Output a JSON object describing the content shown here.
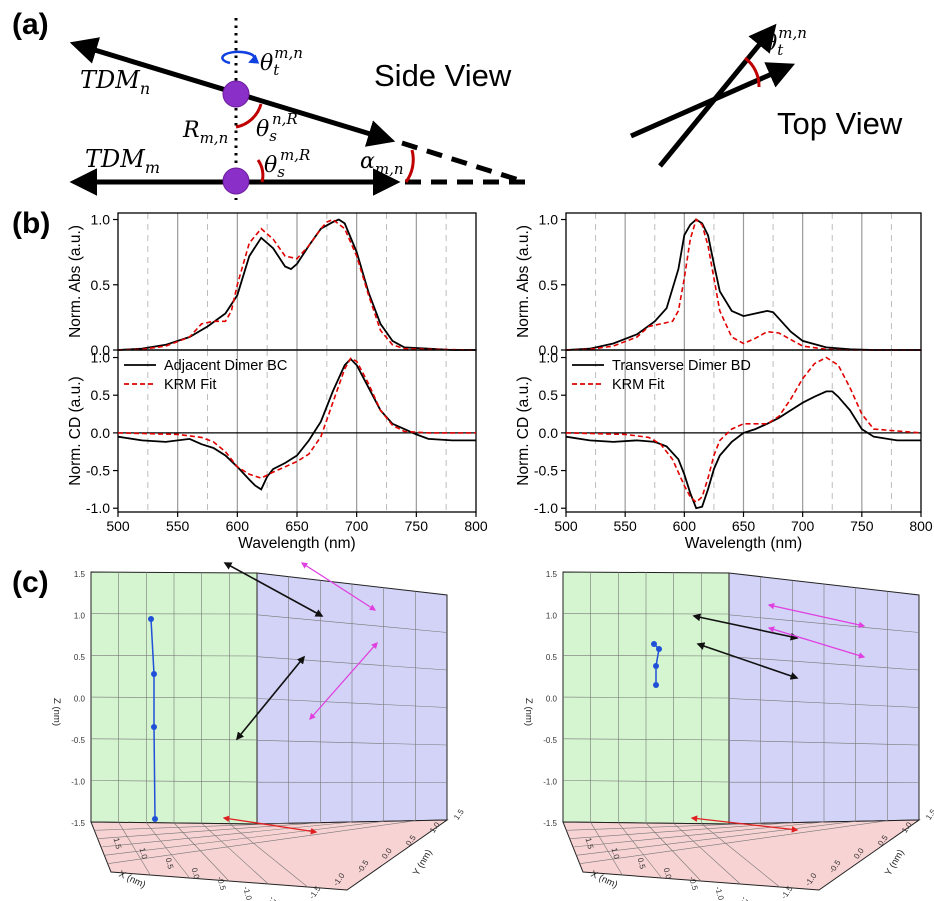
{
  "panels": {
    "a": "(a)",
    "b": "(b)",
    "c": "(c)"
  },
  "diagram": {
    "side_view": "Side View",
    "top_view": "Top View",
    "tdm_n": "TDM",
    "tdm_n_sub": "n",
    "tdm_m": "TDM",
    "tdm_m_sub": "m",
    "r": "R",
    "r_sub": "m,n",
    "theta": "θ",
    "theta_t_sub": "t",
    "theta_t_sup": "m,n",
    "theta_s_sub": "s",
    "theta_s1_sup": "n,R",
    "theta_s2_sup": "m,R",
    "alpha": "α",
    "alpha_sub": "m,n"
  },
  "chart_data": [
    {
      "type": "line",
      "panel": "abs-left",
      "ylabel": "Norm. Abs (a.u.)",
      "xlim": [
        500,
        800
      ],
      "ylim": [
        0,
        1.05
      ],
      "yticks": [
        "0.0",
        "0.5",
        "1.0"
      ],
      "series": [
        {
          "name": "Adjacent Dimer BC",
          "x": [
            500,
            520,
            540,
            560,
            575,
            590,
            600,
            610,
            620,
            630,
            640,
            645,
            650,
            660,
            670,
            680,
            685,
            690,
            700,
            710,
            720,
            730,
            740,
            760,
            780,
            800
          ],
          "y": [
            0,
            0.01,
            0.04,
            0.1,
            0.18,
            0.28,
            0.42,
            0.72,
            0.86,
            0.78,
            0.64,
            0.62,
            0.66,
            0.8,
            0.93,
            0.98,
            1.0,
            0.97,
            0.75,
            0.44,
            0.2,
            0.07,
            0.02,
            0.01,
            0,
            0
          ]
        },
        {
          "name": "KRM Fit",
          "x": [
            500,
            520,
            540,
            560,
            570,
            580,
            590,
            595,
            600,
            610,
            620,
            630,
            640,
            650,
            660,
            670,
            675,
            680,
            690,
            700,
            710,
            720,
            730,
            740,
            760,
            800
          ],
          "y": [
            0,
            0.005,
            0.03,
            0.1,
            0.2,
            0.22,
            0.22,
            0.3,
            0.5,
            0.82,
            0.93,
            0.85,
            0.72,
            0.7,
            0.8,
            0.93,
            0.98,
            1.0,
            0.93,
            0.72,
            0.42,
            0.15,
            0.04,
            0.01,
            0.005,
            0
          ]
        }
      ]
    },
    {
      "type": "line",
      "panel": "cd-left",
      "ylabel": "Norm. CD (a.u.)",
      "xlabel": "Wavelength (nm)",
      "xlim": [
        500,
        800
      ],
      "ylim": [
        -1.05,
        1.1
      ],
      "xticks": [
        "500",
        "550",
        "600",
        "650",
        "700",
        "750",
        "800"
      ],
      "yticks": [
        "-1.0",
        "-0.5",
        "0.0",
        "0.5",
        "1.0"
      ],
      "series": [
        {
          "name": "Adjacent Dimer BC",
          "x": [
            500,
            520,
            540,
            560,
            570,
            580,
            590,
            600,
            610,
            615,
            620,
            625,
            630,
            640,
            650,
            660,
            670,
            680,
            690,
            695,
            700,
            710,
            720,
            730,
            740,
            750,
            760,
            780,
            800
          ],
          "y": [
            -0.05,
            -0.1,
            -0.12,
            -0.08,
            -0.15,
            -0.2,
            -0.3,
            -0.45,
            -0.62,
            -0.7,
            -0.75,
            -0.58,
            -0.48,
            -0.4,
            -0.3,
            -0.1,
            0.15,
            0.55,
            0.9,
            0.98,
            0.9,
            0.6,
            0.3,
            0.12,
            0.05,
            -0.02,
            -0.08,
            -0.1,
            -0.1
          ]
        },
        {
          "name": "KRM Fit",
          "x": [
            500,
            550,
            570,
            580,
            590,
            600,
            610,
            620,
            630,
            640,
            650,
            660,
            670,
            680,
            690,
            695,
            700,
            710,
            720,
            730,
            740,
            760,
            800
          ],
          "y": [
            0,
            -0.02,
            -0.06,
            -0.12,
            -0.25,
            -0.45,
            -0.55,
            -0.6,
            -0.52,
            -0.45,
            -0.38,
            -0.28,
            -0.05,
            0.4,
            0.85,
            0.99,
            0.95,
            0.65,
            0.3,
            0.1,
            0.02,
            0,
            0
          ]
        }
      ]
    },
    {
      "type": "line",
      "panel": "abs-right",
      "ylabel": "Norm. Abs (a.u.)",
      "xlim": [
        500,
        800
      ],
      "ylim": [
        0,
        1.05
      ],
      "yticks": [
        "0.0",
        "0.5",
        "1.0"
      ],
      "series": [
        {
          "name": "Transverse Dimer BD",
          "x": [
            500,
            520,
            540,
            560,
            575,
            585,
            595,
            600,
            605,
            610,
            615,
            620,
            625,
            630,
            640,
            650,
            660,
            670,
            675,
            680,
            690,
            700,
            720,
            740,
            760,
            800
          ],
          "y": [
            0,
            0.01,
            0.05,
            0.12,
            0.22,
            0.32,
            0.62,
            0.88,
            0.96,
            1.0,
            0.97,
            0.88,
            0.66,
            0.45,
            0.3,
            0.26,
            0.28,
            0.3,
            0.29,
            0.24,
            0.14,
            0.07,
            0.02,
            0.005,
            0,
            0
          ]
        },
        {
          "name": "KRM Fit",
          "x": [
            500,
            520,
            540,
            560,
            570,
            580,
            590,
            595,
            600,
            605,
            610,
            615,
            620,
            625,
            630,
            640,
            650,
            660,
            670,
            680,
            690,
            700,
            720,
            740,
            800
          ],
          "y": [
            0,
            0.005,
            0.03,
            0.1,
            0.18,
            0.2,
            0.22,
            0.3,
            0.55,
            0.85,
            1.0,
            0.96,
            0.8,
            0.55,
            0.3,
            0.1,
            0.05,
            0.09,
            0.14,
            0.13,
            0.08,
            0.03,
            0.005,
            0,
            0
          ]
        }
      ]
    },
    {
      "type": "line",
      "panel": "cd-right",
      "ylabel": "Norm. CD (a.u.)",
      "xlabel": "Wavelength (nm)",
      "xlim": [
        500,
        800
      ],
      "ylim": [
        -1.05,
        1.1
      ],
      "xticks": [
        "500",
        "550",
        "600",
        "650",
        "700",
        "750",
        "800"
      ],
      "yticks": [
        "-1.0",
        "-0.5",
        "0.0",
        "0.5",
        "1.0"
      ],
      "series": [
        {
          "name": "Transverse Dimer BD",
          "x": [
            500,
            520,
            540,
            560,
            575,
            585,
            595,
            600,
            605,
            610,
            615,
            620,
            625,
            630,
            640,
            650,
            660,
            670,
            680,
            690,
            700,
            710,
            720,
            725,
            730,
            740,
            750,
            760,
            780,
            800
          ],
          "y": [
            -0.05,
            -0.1,
            -0.12,
            -0.1,
            -0.12,
            -0.18,
            -0.35,
            -0.55,
            -0.8,
            -1.0,
            -0.98,
            -0.75,
            -0.48,
            -0.3,
            -0.12,
            0.0,
            0.05,
            0.12,
            0.2,
            0.3,
            0.4,
            0.48,
            0.55,
            0.55,
            0.48,
            0.3,
            0.05,
            -0.05,
            -0.1,
            -0.1
          ]
        },
        {
          "name": "KRM Fit",
          "x": [
            500,
            550,
            570,
            580,
            590,
            600,
            605,
            610,
            615,
            620,
            625,
            630,
            640,
            650,
            660,
            670,
            680,
            690,
            700,
            710,
            720,
            730,
            740,
            750,
            760,
            800
          ],
          "y": [
            0,
            -0.02,
            -0.06,
            -0.15,
            -0.35,
            -0.7,
            -0.85,
            -0.92,
            -0.85,
            -0.6,
            -0.3,
            -0.1,
            0.05,
            0.12,
            0.12,
            0.12,
            0.22,
            0.45,
            0.72,
            0.92,
            1.0,
            0.9,
            0.6,
            0.25,
            0.05,
            0
          ]
        }
      ]
    }
  ],
  "plots3d": {
    "zlabel": "Z (nm)",
    "xlabel": "X (nm)",
    "ylabel": "Y (nm)",
    "z_ticks": [
      "1.5",
      "1.0",
      "0.5",
      "0.0",
      "-0.5",
      "-1.0",
      "-1.5"
    ],
    "x_ticks": [
      "1.5",
      "1.0",
      "0.5",
      "0.0",
      "-0.5",
      "-1.0",
      "-1.5"
    ],
    "y_ticks": [
      "-1.5",
      "-1.0",
      "-0.5",
      "0.0",
      "0.5",
      "1.0",
      "1.5"
    ],
    "colors": {
      "left_wall": "#d5f5d0",
      "right_wall": "#d3d3f7",
      "floor": "#f8d3d3",
      "chain": "#2050d8",
      "tdm": "#111111",
      "proj_wall": "#e040e0",
      "proj_floor": "#e02020"
    }
  },
  "colors": {
    "data": "#000000",
    "fit": "#e00000",
    "arc": "#c00000",
    "rotation": "#1040e0",
    "molecule": "#8a2fc8"
  }
}
